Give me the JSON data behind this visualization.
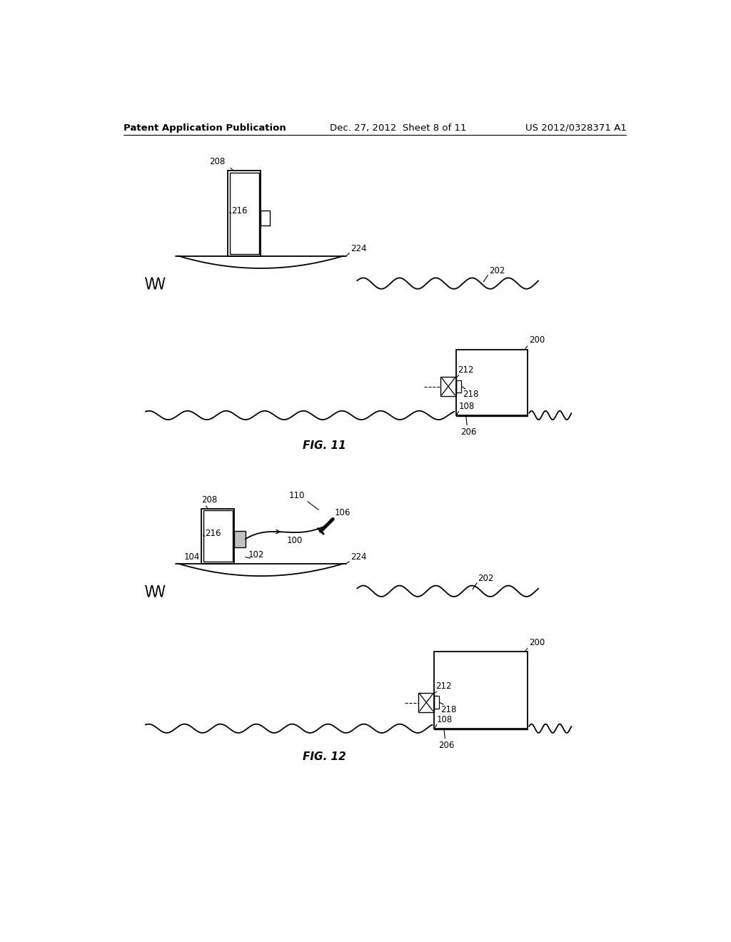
{
  "header_left": "Patent Application Publication",
  "header_mid": "Dec. 27, 2012  Sheet 8 of 11",
  "header_right": "US 2012/0328371 A1",
  "fig11_label": "FIG. 11",
  "fig12_label": "FIG. 12",
  "bg_color": "#ffffff",
  "line_color": "#000000"
}
